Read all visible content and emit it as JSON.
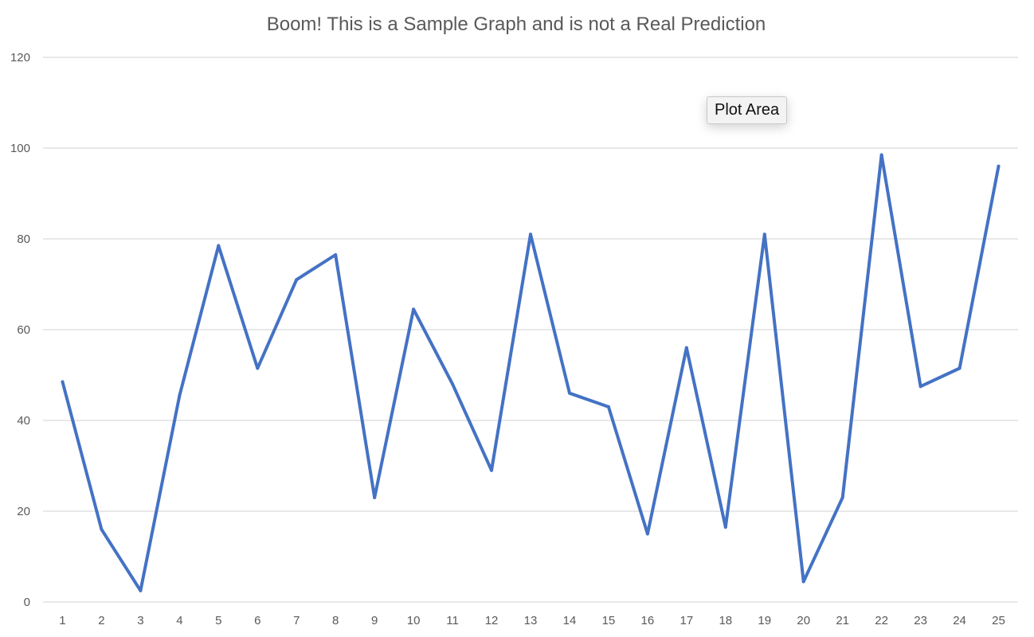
{
  "chart_data": {
    "type": "line",
    "title": "Boom! This is a Sample Graph and is not a Real Prediction",
    "xlabel": "",
    "ylabel": "",
    "categories": [
      "1",
      "2",
      "3",
      "4",
      "5",
      "6",
      "7",
      "8",
      "9",
      "10",
      "11",
      "12",
      "13",
      "14",
      "15",
      "16",
      "17",
      "18",
      "19",
      "20",
      "21",
      "22",
      "23",
      "24",
      "25"
    ],
    "series": [
      {
        "name": "",
        "color": "#4472c4",
        "values": [
          48.5,
          16,
          2.5,
          45.5,
          78.5,
          51.5,
          71,
          76.5,
          23,
          64.5,
          48,
          29,
          81,
          46,
          43,
          15,
          56,
          16.5,
          81,
          4.5,
          23,
          98.5,
          47.5,
          51.5,
          96
        ]
      }
    ],
    "ylim": [
      0,
      120
    ],
    "yticks": [
      "0",
      "20",
      "40",
      "60",
      "80",
      "100",
      "120"
    ],
    "grid": true,
    "legend": "none"
  },
  "tooltip": {
    "label": "Plot Area"
  }
}
